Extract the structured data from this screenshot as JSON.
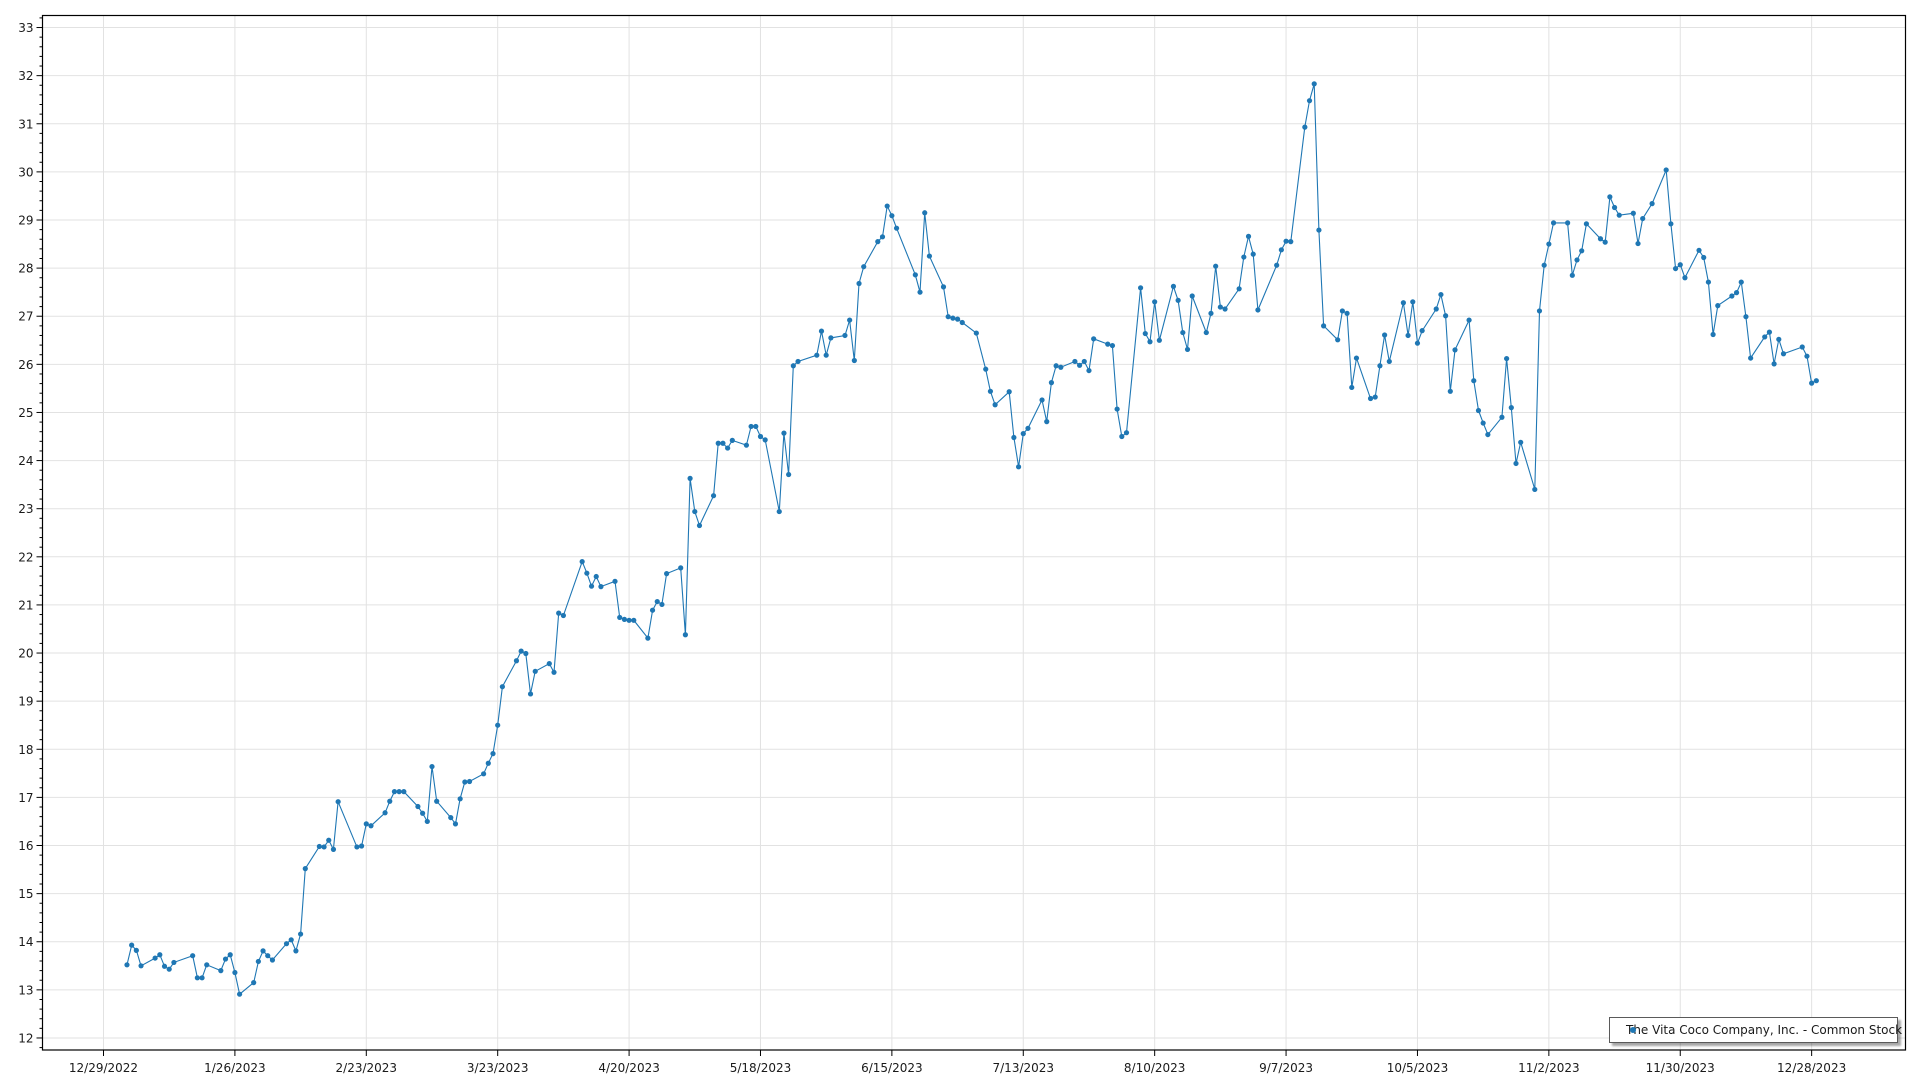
{
  "chart_data": {
    "type": "line",
    "title": "",
    "xlabel": "",
    "ylabel": "",
    "ylim": [
      11.75,
      33.25
    ],
    "xlim": [
      "12/16/2022",
      "1/17/2024"
    ],
    "grid": true,
    "legend_position": "bottom-right",
    "line_color": "#1f77b4",
    "markers": true,
    "y_ticks": [
      "12",
      "13",
      "14",
      "15",
      "16",
      "17",
      "18",
      "19",
      "20",
      "21",
      "22",
      "23",
      "24",
      "25",
      "26",
      "27",
      "28",
      "29",
      "30",
      "31",
      "32",
      "33"
    ],
    "x_ticks": [
      "12/29/2022",
      "1/26/2023",
      "2/23/2023",
      "3/23/2023",
      "4/20/2023",
      "5/18/2023",
      "6/15/2023",
      "7/13/2023",
      "8/10/2023",
      "9/7/2023",
      "10/5/2023",
      "11/2/2023",
      "11/30/2023",
      "12/28/2023"
    ],
    "series": [
      {
        "name": "The Vita Coco Company, Inc. - Common Stock",
        "x": [
          "1/3/2023",
          "1/4/2023",
          "1/5/2023",
          "1/6/2023",
          "1/9/2023",
          "1/10/2023",
          "1/11/2023",
          "1/12/2023",
          "1/13/2023",
          "1/17/2023",
          "1/18/2023",
          "1/19/2023",
          "1/20/2023",
          "1/23/2023",
          "1/24/2023",
          "1/25/2023",
          "1/26/2023",
          "1/27/2023",
          "1/30/2023",
          "1/31/2023",
          "2/1/2023",
          "2/2/2023",
          "2/3/2023",
          "2/6/2023",
          "2/7/2023",
          "2/8/2023",
          "2/9/2023",
          "2/10/2023",
          "2/13/2023",
          "2/14/2023",
          "2/15/2023",
          "2/16/2023",
          "2/17/2023",
          "2/21/2023",
          "2/22/2023",
          "2/23/2023",
          "2/24/2023",
          "2/27/2023",
          "2/28/2023",
          "3/1/2023",
          "3/2/2023",
          "3/3/2023",
          "3/6/2023",
          "3/7/2023",
          "3/8/2023",
          "3/9/2023",
          "3/10/2023",
          "3/13/2023",
          "3/14/2023",
          "3/15/2023",
          "3/16/2023",
          "3/17/2023",
          "3/20/2023",
          "3/21/2023",
          "3/22/2023",
          "3/23/2023",
          "3/24/2023",
          "3/27/2023",
          "3/28/2023",
          "3/29/2023",
          "3/30/2023",
          "3/31/2023",
          "4/3/2023",
          "4/4/2023",
          "4/5/2023",
          "4/6/2023",
          "4/10/2023",
          "4/11/2023",
          "4/12/2023",
          "4/13/2023",
          "4/14/2023",
          "4/17/2023",
          "4/18/2023",
          "4/19/2023",
          "4/20/2023",
          "4/21/2023",
          "4/24/2023",
          "4/25/2023",
          "4/26/2023",
          "4/27/2023",
          "4/28/2023",
          "5/1/2023",
          "5/2/2023",
          "5/3/2023",
          "5/4/2023",
          "5/5/2023",
          "5/8/2023",
          "5/9/2023",
          "5/10/2023",
          "5/11/2023",
          "5/12/2023",
          "5/15/2023",
          "5/16/2023",
          "5/17/2023",
          "5/18/2023",
          "5/19/2023",
          "5/22/2023",
          "5/23/2023",
          "5/24/2023",
          "5/25/2023",
          "5/26/2023",
          "5/30/2023",
          "5/31/2023",
          "6/1/2023",
          "6/2/2023",
          "6/5/2023",
          "6/6/2023",
          "6/7/2023",
          "6/8/2023",
          "6/9/2023",
          "6/12/2023",
          "6/13/2023",
          "6/14/2023",
          "6/15/2023",
          "6/16/2023",
          "6/20/2023",
          "6/21/2023",
          "6/22/2023",
          "6/23/2023",
          "6/26/2023",
          "6/27/2023",
          "6/28/2023",
          "6/29/2023",
          "6/30/2023",
          "7/3/2023",
          "7/5/2023",
          "7/6/2023",
          "7/7/2023",
          "7/10/2023",
          "7/11/2023",
          "7/12/2023",
          "7/13/2023",
          "7/14/2023",
          "7/17/2023",
          "7/18/2023",
          "7/19/2023",
          "7/20/2023",
          "7/21/2023",
          "7/24/2023",
          "7/25/2023",
          "7/26/2023",
          "7/27/2023",
          "7/28/2023",
          "7/31/2023",
          "8/1/2023",
          "8/2/2023",
          "8/3/2023",
          "8/4/2023",
          "8/7/2023",
          "8/8/2023",
          "8/9/2023",
          "8/10/2023",
          "8/11/2023",
          "8/14/2023",
          "8/15/2023",
          "8/16/2023",
          "8/17/2023",
          "8/18/2023",
          "8/21/2023",
          "8/22/2023",
          "8/23/2023",
          "8/24/2023",
          "8/25/2023",
          "8/28/2023",
          "8/29/2023",
          "8/30/2023",
          "8/31/2023",
          "9/1/2023",
          "9/5/2023",
          "9/6/2023",
          "9/7/2023",
          "9/8/2023",
          "9/11/2023",
          "9/12/2023",
          "9/13/2023",
          "9/14/2023",
          "9/15/2023",
          "9/18/2023",
          "9/19/2023",
          "9/20/2023",
          "9/21/2023",
          "9/22/2023",
          "9/25/2023",
          "9/26/2023",
          "9/27/2023",
          "9/28/2023",
          "9/29/2023",
          "10/2/2023",
          "10/3/2023",
          "10/4/2023",
          "10/5/2023",
          "10/6/2023",
          "10/9/2023",
          "10/10/2023",
          "10/11/2023",
          "10/12/2023",
          "10/13/2023",
          "10/16/2023",
          "10/17/2023",
          "10/18/2023",
          "10/19/2023",
          "10/20/2023",
          "10/23/2023",
          "10/24/2023",
          "10/25/2023",
          "10/26/2023",
          "10/27/2023",
          "10/30/2023",
          "10/31/2023",
          "11/1/2023",
          "11/2/2023",
          "11/3/2023",
          "11/6/2023",
          "11/7/2023",
          "11/8/2023",
          "11/9/2023",
          "11/10/2023",
          "11/13/2023",
          "11/14/2023",
          "11/15/2023",
          "11/16/2023",
          "11/17/2023",
          "11/20/2023",
          "11/21/2023",
          "11/22/2023",
          "11/24/2023",
          "11/27/2023",
          "11/28/2023",
          "11/29/2023",
          "11/30/2023",
          "12/1/2023",
          "12/4/2023",
          "12/5/2023",
          "12/6/2023",
          "12/7/2023",
          "12/8/2023",
          "12/11/2023",
          "12/12/2023",
          "12/13/2023",
          "12/14/2023",
          "12/15/2023",
          "12/18/2023",
          "12/19/2023",
          "12/20/2023",
          "12/21/2023",
          "12/22/2023",
          "12/26/2023",
          "12/27/2023",
          "12/28/2023",
          "12/29/2023"
        ],
        "y": [
          13.52,
          13.93,
          13.82,
          13.5,
          13.66,
          13.73,
          13.49,
          13.43,
          13.57,
          13.71,
          13.25,
          13.25,
          13.52,
          13.4,
          13.64,
          13.73,
          13.36,
          12.91,
          13.15,
          13.59,
          13.81,
          13.71,
          13.62,
          13.96,
          14.04,
          13.81,
          14.16,
          15.52,
          15.98,
          15.97,
          16.11,
          15.92,
          16.91,
          15.97,
          15.99,
          16.45,
          16.41,
          16.68,
          16.92,
          17.12,
          17.12,
          17.12,
          16.81,
          16.67,
          16.5,
          17.64,
          16.92,
          16.58,
          16.45,
          16.97,
          17.32,
          17.33,
          17.49,
          17.71,
          17.91,
          18.5,
          19.3,
          19.84,
          20.04,
          19.99,
          19.15,
          19.62,
          19.78,
          19.6,
          20.83,
          20.78,
          21.9,
          21.66,
          21.39,
          21.59,
          21.38,
          21.49,
          20.74,
          20.7,
          20.68,
          20.68,
          20.31,
          20.89,
          21.07,
          21.01,
          21.65,
          21.77,
          20.38,
          23.63,
          22.94,
          22.65,
          23.27,
          24.36,
          24.36,
          24.26,
          24.42,
          24.32,
          24.71,
          24.71,
          24.5,
          24.43,
          22.94,
          24.57,
          23.71,
          25.97,
          26.06,
          26.19,
          26.69,
          26.19,
          26.55,
          26.6,
          26.92,
          26.08,
          27.68,
          28.03,
          28.55,
          28.65,
          29.29,
          29.09,
          28.83,
          27.86,
          27.5,
          29.15,
          28.25,
          27.61,
          26.99,
          26.96,
          26.94,
          26.87,
          26.65,
          25.9,
          25.44,
          25.16,
          25.43,
          24.48,
          23.87,
          24.56,
          24.67,
          25.26,
          24.81,
          25.62,
          25.97,
          25.94,
          26.06,
          25.98,
          26.06,
          25.87,
          26.53,
          26.42,
          26.39,
          25.07,
          24.5,
          24.58,
          27.59,
          26.64,
          26.47,
          27.3,
          26.5,
          27.62,
          27.33,
          26.66,
          26.31,
          27.42,
          26.66,
          27.06,
          28.04,
          27.19,
          27.15,
          27.57,
          28.23,
          28.66,
          28.29,
          27.13,
          28.06,
          28.38,
          28.56,
          28.55,
          30.93,
          31.48,
          31.83,
          28.79,
          26.8,
          26.51,
          27.11,
          27.06,
          25.52,
          26.13,
          25.29,
          25.32,
          25.97,
          26.61,
          26.06,
          27.28,
          26.6,
          27.3,
          26.44,
          26.7,
          27.15,
          27.45,
          27.01,
          25.44,
          26.3,
          26.92,
          25.66,
          25.04,
          24.78,
          24.54,
          24.9,
          26.12,
          25.1,
          23.94,
          24.38,
          23.4,
          27.11,
          28.06,
          28.5,
          28.94,
          28.94,
          27.85,
          28.17,
          28.36,
          28.92,
          28.61,
          28.54,
          29.48,
          29.26,
          29.1,
          29.14,
          28.51,
          29.03,
          29.34,
          30.04,
          28.92,
          27.99,
          28.07,
          27.8,
          28.37,
          28.22,
          27.71,
          26.62,
          27.22,
          27.42,
          27.49,
          27.71,
          26.99,
          26.13,
          26.57,
          26.67,
          26.01,
          26.52,
          26.22,
          26.36,
          26.17,
          25.61,
          25.66
        ]
      }
    ]
  },
  "legend": {
    "label": "The Vita Coco Company, Inc. - Common Stock"
  }
}
